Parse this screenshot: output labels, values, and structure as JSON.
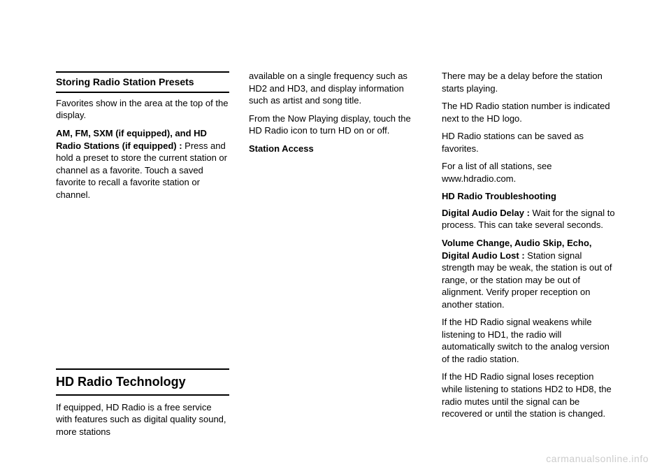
{
  "col1": {
    "heading1": "Storing Radio Station Presets",
    "para1": "Favorites show in the area at the top of the display.",
    "para2_bold": "AM, FM, SXM (if equipped), and HD Radio Stations (if equipped) :",
    "para2_rest": " Press and hold a preset to store the current station or channel as a favorite. Touch a saved favorite to recall a favorite station or channel.",
    "heading2": "HD Radio Technology",
    "para3": "If equipped, HD Radio is a free service with features such as digital quality sound, more stations"
  },
  "col2": {
    "para1": "available on a single frequency such as HD2 and HD3, and display information such as artist and song title.",
    "para2": "From the Now Playing display, touch the HD Radio icon to turn HD on or off.",
    "heading1": "Station Access"
  },
  "col3": {
    "para1": "There may be a delay before the station starts playing.",
    "para2": "The HD Radio station number is indicated next to the HD logo.",
    "para3": "HD Radio stations can be saved as favorites.",
    "para4": "For a list of all stations, see www.hdradio.com.",
    "heading1": "HD Radio Troubleshooting",
    "para5_bold": "Digital Audio Delay :",
    "para5_rest": " Wait for the signal to process. This can take several seconds.",
    "para6_bold": "Volume Change, Audio Skip, Echo, Digital Audio Lost :",
    "para6_rest": " Station signal strength may be weak, the station is out of range, or the station may be out of alignment. Verify proper reception on another station.",
    "para7": "If the HD Radio signal weakens while listening to HD1, the radio will automatically switch to the analog version of the radio station.",
    "para8": "If the HD Radio signal loses reception while listening to stations HD2 to HD8, the radio mutes until the signal can be recovered or until the station is changed."
  },
  "watermark": "carmanualsonline.info"
}
